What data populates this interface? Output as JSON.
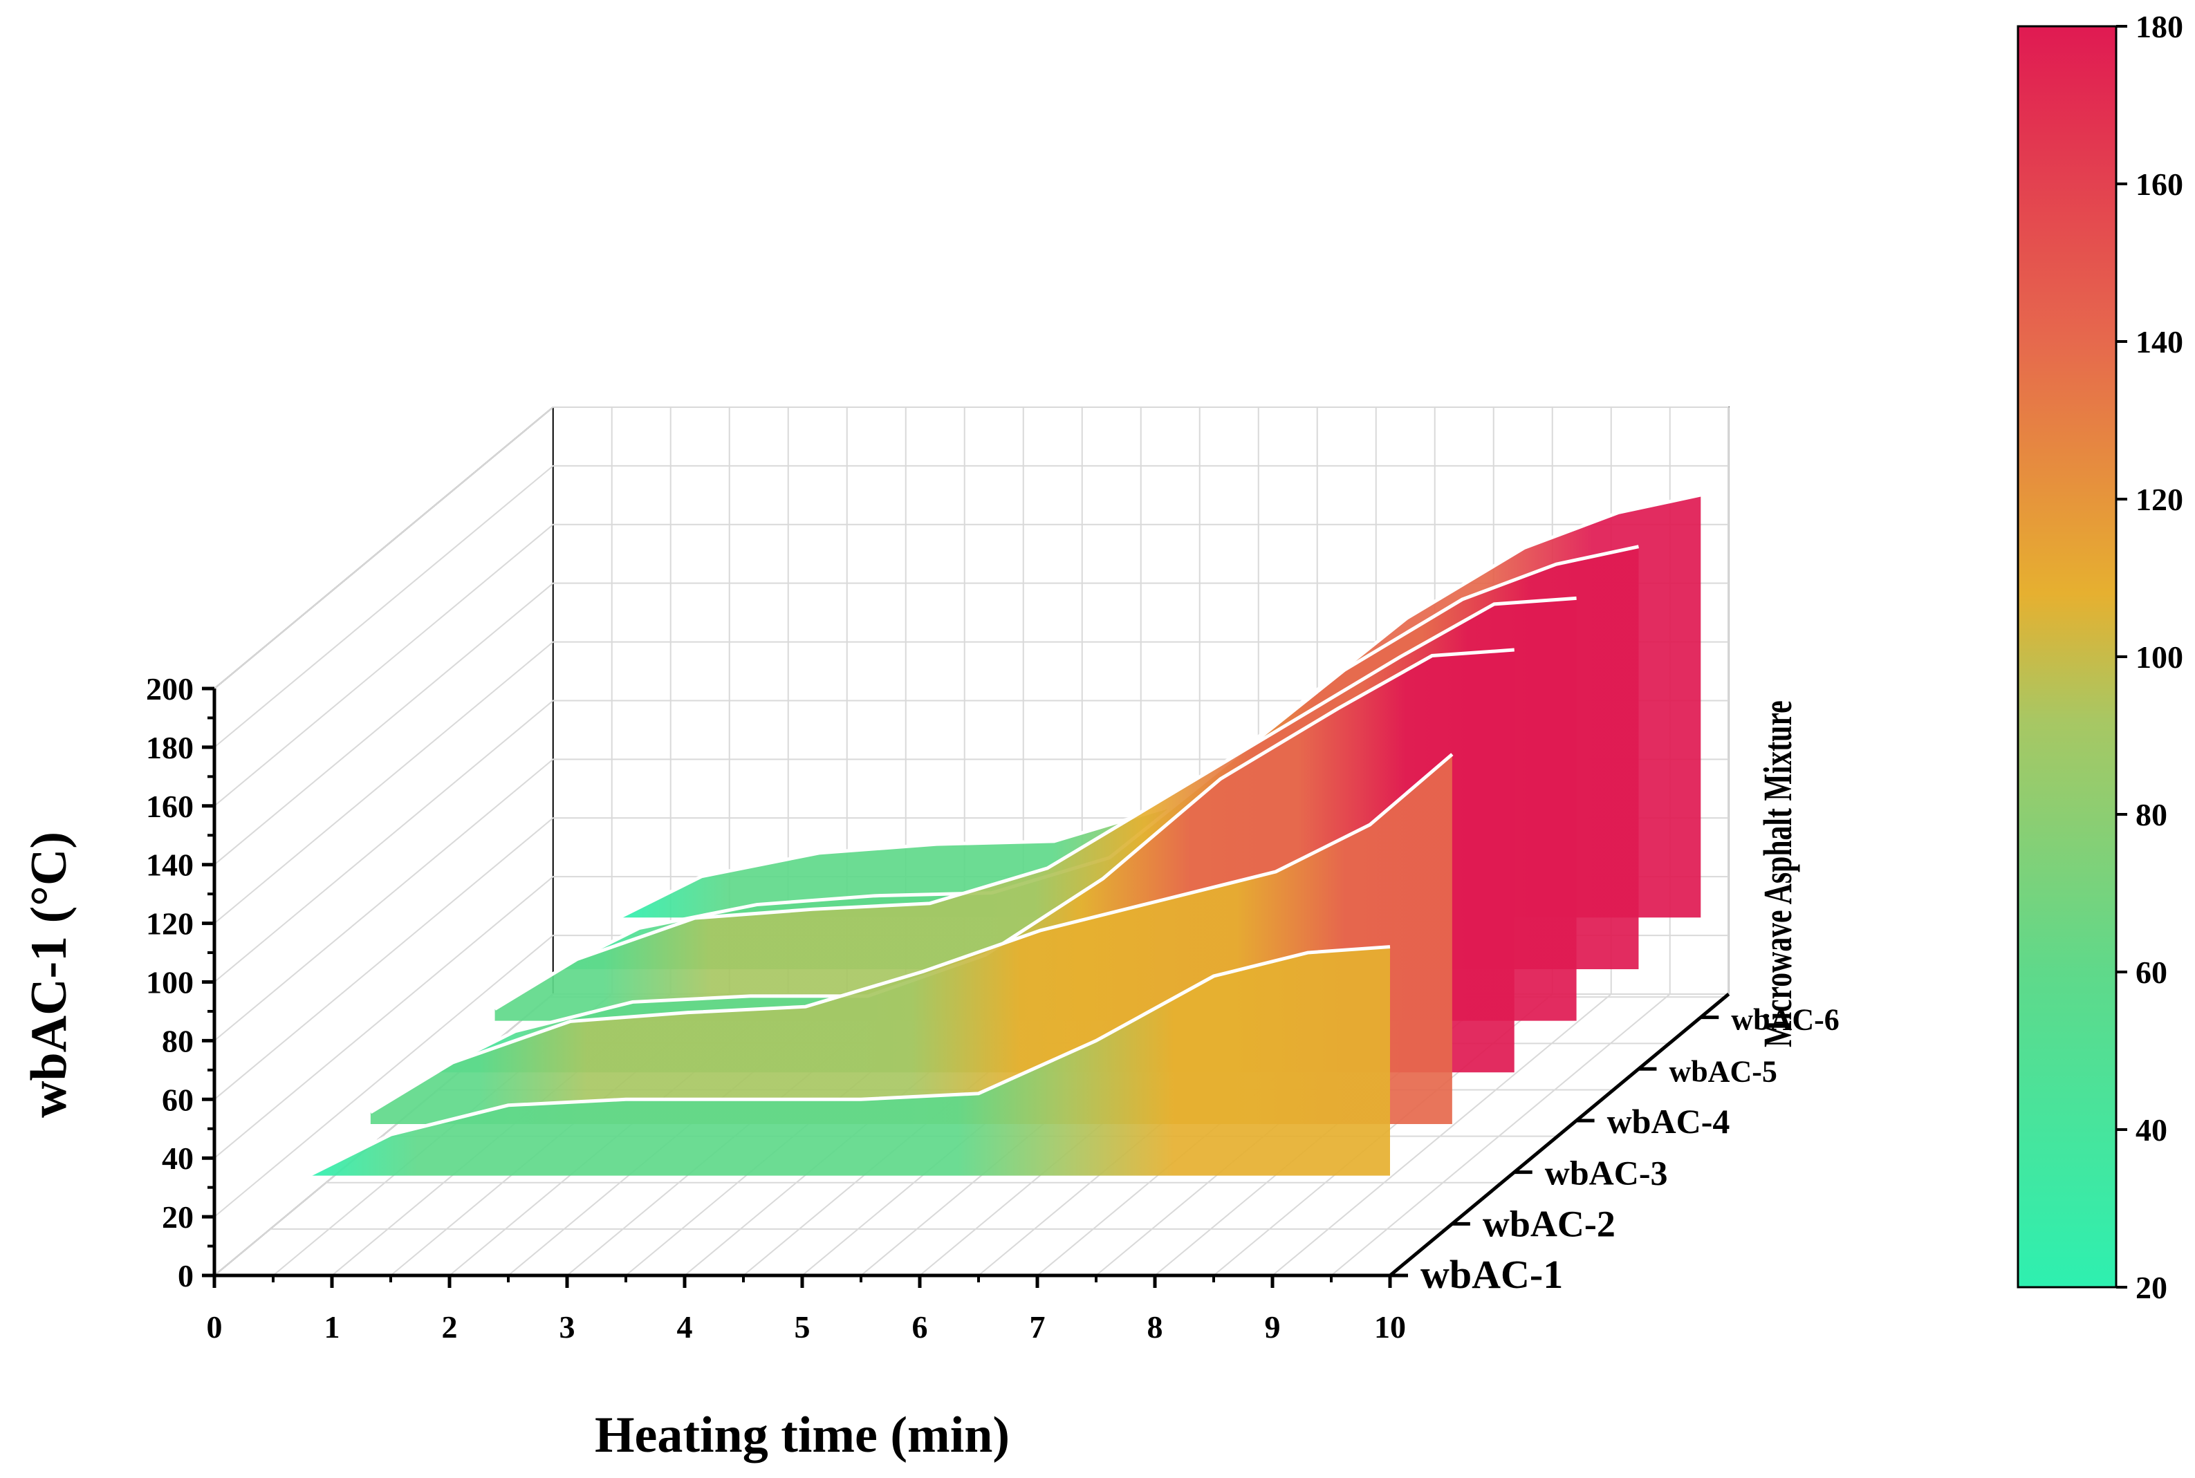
{
  "chart_data": {
    "type": "area",
    "title": "",
    "xlabel": "Heating time (min)",
    "ylabel": "wbAC-1 (°C)",
    "zlabel": "Microwave Asphalt Mixture",
    "xlim": [
      0,
      10
    ],
    "ylim": [
      0,
      200
    ],
    "x_ticks": [
      "0",
      "1",
      "2",
      "3",
      "4",
      "5",
      "6",
      "7",
      "8",
      "9",
      "10"
    ],
    "y_ticks": [
      "0",
      "20",
      "40",
      "60",
      "80",
      "100",
      "120",
      "140",
      "160",
      "180",
      "200"
    ],
    "x": [
      0.8,
      1.5,
      2.5,
      3.5,
      4.5,
      5.5,
      6.5,
      7.5,
      8.5,
      9.3,
      10.0
    ],
    "series": [
      {
        "name": "wbAC-1",
        "values": [
          34,
          48,
          58,
          60,
          60,
          60,
          62,
          80,
          102,
          110,
          112
        ]
      },
      {
        "name": "wbAC-2",
        "values": [
          38,
          55,
          69,
          72,
          74,
          86,
          100,
          110,
          120,
          136,
          160
        ]
      },
      {
        "name": "wbAC-3",
        "values": [
          34,
          48,
          58,
          60,
          60,
          74,
          100,
          134,
          158,
          176,
          178
        ]
      },
      {
        "name": "wbAC-4",
        "values": [
          38,
          55,
          69,
          72,
          74,
          86,
          110,
          134,
          158,
          176,
          178
        ]
      },
      {
        "name": "wbAC-5",
        "values": [
          34,
          48,
          56,
          59,
          60,
          72,
          104,
          136,
          160,
          172,
          178
        ]
      },
      {
        "name": "wbAC-6",
        "values": [
          34,
          48,
          56,
          59,
          60,
          72,
          104,
          136,
          160,
          172,
          178
        ]
      }
    ],
    "colorbar": {
      "min": 20,
      "max": 180,
      "ticks": [
        "20",
        "40",
        "60",
        "80",
        "100",
        "120",
        "140",
        "160",
        "180"
      ],
      "colors": [
        "#2ef0b0",
        "#5fd98a",
        "#a8c763",
        "#e6b030",
        "#e6694d",
        "#e01a52"
      ]
    }
  }
}
